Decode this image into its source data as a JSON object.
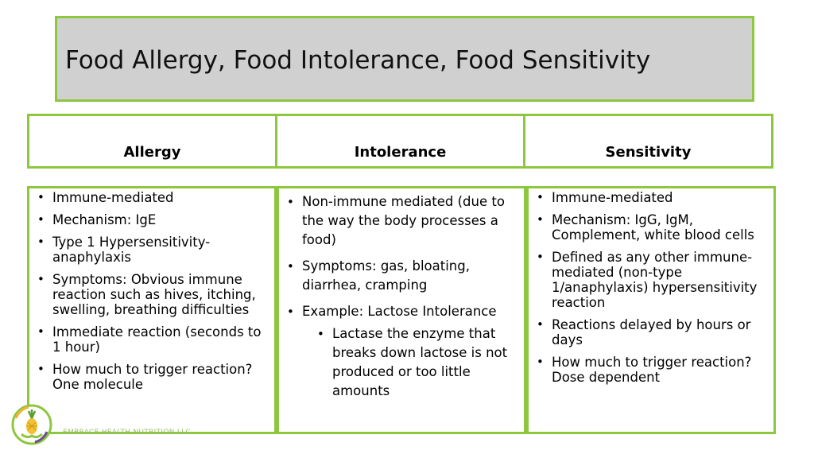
{
  "title": "Food Allergy, Food Intolerance, Food Sensitivity",
  "headers": [
    "Allergy",
    "Intolerance",
    "Sensitivity"
  ],
  "allergy": [
    "Immune-mediated",
    "Mechanism: IgE",
    "Type 1 Hypersensitivity- anaphylaxis",
    "Symptoms: Obvious immune reaction such as hives, itching, swelling, breathing difficulties",
    "Immediate reaction (seconds to 1 hour)",
    "How much to trigger reaction? One molecule"
  ],
  "intolerance": [
    "Non-immune mediated (due to the way the body processes a food)",
    "Symptoms: gas, bloating, diarrhea, cramping",
    "Example: Lactose Intolerance"
  ],
  "intolerance_sub": [
    "Lactase the enzyme that breaks down lactose is not produced or too little amounts"
  ],
  "sensitivity": [
    "Immune-mediated",
    "Mechanism: IgG, IgM, Complement, white blood cells",
    "Defined as any other immune-mediated (non-type 1/anaphylaxis) hypersensitivity reaction",
    "Reactions delayed by hours or days",
    "How much to trigger reaction? Dose dependent"
  ],
  "footer": "EMBRACE HEALTH NUTRITION LLC",
  "colors": {
    "accent": "#8dc63f",
    "title_bg": "#d0d0d0"
  },
  "logo_icon": "pineapple-hands-logo"
}
